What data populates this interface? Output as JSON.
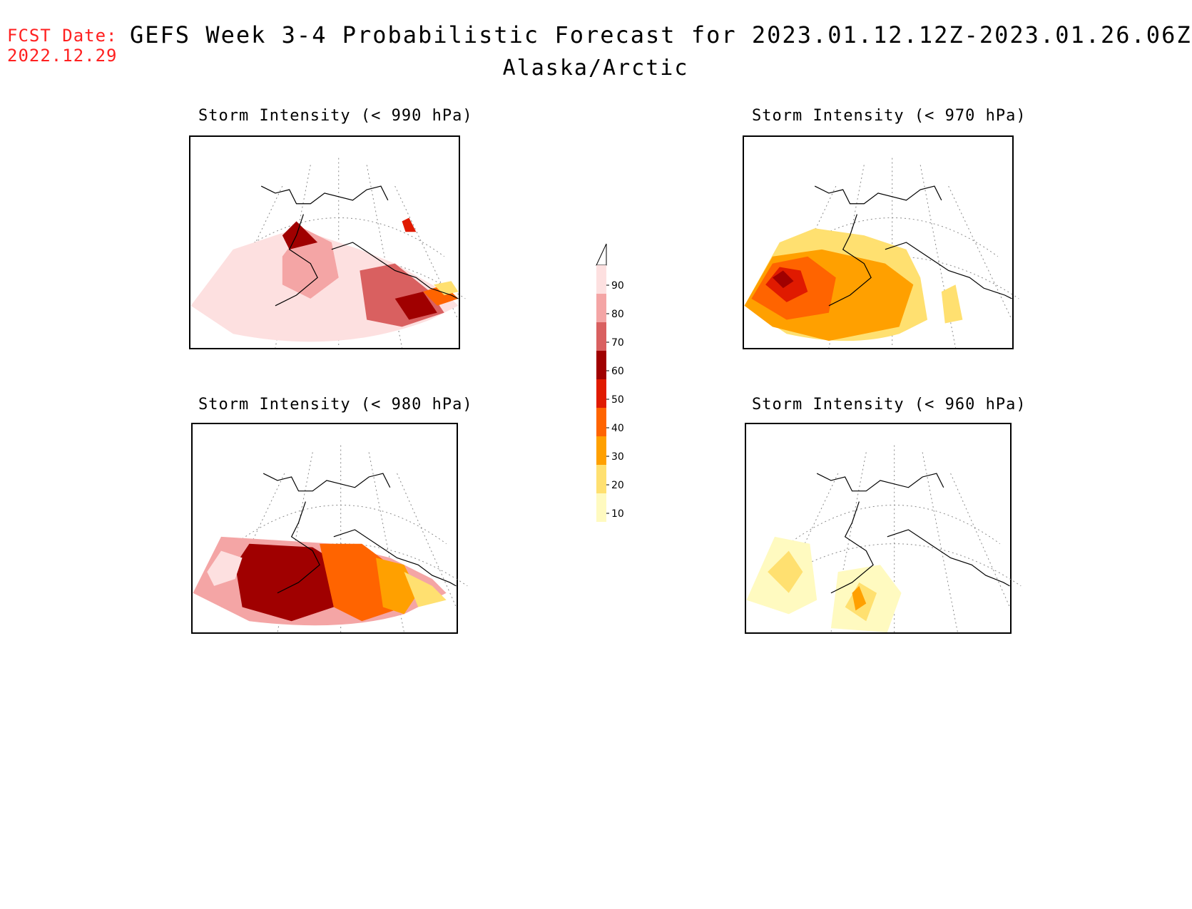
{
  "header": {
    "fcst_label": "FCST Date:",
    "fcst_date": "2022.12.29",
    "title": "GEFS Week 3-4 Probabilistic Forecast for 2023.01.12.12Z-2023.01.26.06Z",
    "subtitle": "Alaska/Arctic"
  },
  "panels": [
    {
      "title": "Storm Intensity (< 990 hPa)",
      "threshold_hPa": 990,
      "dominant_range": "70-100"
    },
    {
      "title": "Storm Intensity (< 970 hPa)",
      "threshold_hPa": 970,
      "dominant_range": "20-60"
    },
    {
      "title": "Storm Intensity (< 980 hPa)",
      "threshold_hPa": 980,
      "dominant_range": "40-90"
    },
    {
      "title": "Storm Intensity (< 960 hPa)",
      "threshold_hPa": 960,
      "dominant_range": "10-30"
    }
  ],
  "colorbar": {
    "labels": [
      "90",
      "80",
      "70",
      "60",
      "50",
      "40",
      "30",
      "20",
      "10"
    ],
    "colors": [
      "#fde0e0",
      "#f4a5a5",
      "#d96060",
      "#a00000",
      "#e01a00",
      "#ff6400",
      "#ffa000",
      "#ffe070",
      "#fffac0"
    ]
  }
}
